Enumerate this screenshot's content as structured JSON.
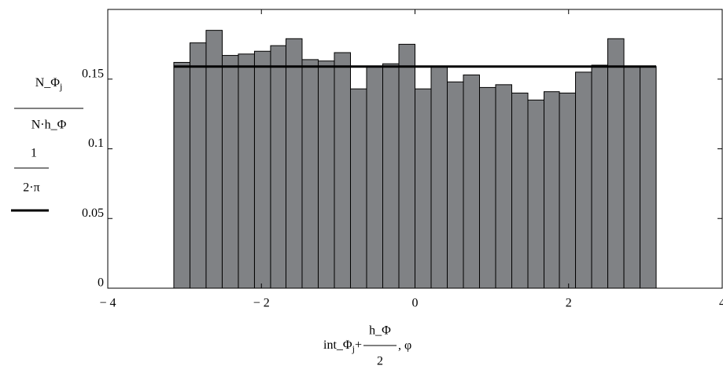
{
  "chart_data": {
    "type": "histogram",
    "bins": [
      -3.14,
      -2.93,
      -2.72,
      -2.51,
      -2.3,
      -2.09,
      -1.88,
      -1.68,
      -1.47,
      -1.26,
      -1.05,
      -0.84,
      -0.63,
      -0.42,
      -0.21,
      0,
      0.21,
      0.42,
      0.63,
      0.84,
      1.05,
      1.26,
      1.47,
      1.68,
      1.88,
      2.09,
      2.3,
      2.51,
      2.72,
      2.93,
      3.14
    ],
    "values": [
      0.162,
      0.176,
      0.185,
      0.167,
      0.168,
      0.17,
      0.174,
      0.179,
      0.164,
      0.163,
      0.169,
      0.143,
      0.159,
      0.161,
      0.175,
      0.143,
      0.159,
      0.148,
      0.153,
      0.144,
      0.146,
      0.14,
      0.135,
      0.141,
      0.14,
      0.155,
      0.16,
      0.179,
      0.159,
      0.159
    ],
    "color": "#808285",
    "line": {
      "x": [
        -3.14,
        3.14
      ],
      "values": [
        0.159,
        0.159
      ],
      "color": "#000000"
    },
    "xlim": [
      -4,
      4
    ],
    "ylim": [
      0,
      0.2
    ],
    "xticks": [
      {
        "value": -4,
        "label": "− 4"
      },
      {
        "value": -2,
        "label": "− 2"
      },
      0,
      2,
      4
    ],
    "yticks": [
      0,
      0.05,
      0.1,
      0.15
    ],
    "y_label": [
      {
        "numerator": "N_Φ",
        "subscript": "j",
        "denominator": "N·h_Φ"
      },
      {
        "numerator": "1",
        "denominator": "2·π"
      }
    ],
    "x_label": {
      "base": "int_Φ",
      "subscript": "j",
      "plus": "+",
      "numerator": "h_Φ",
      "denominator": "2",
      "tail": ", φ"
    }
  }
}
